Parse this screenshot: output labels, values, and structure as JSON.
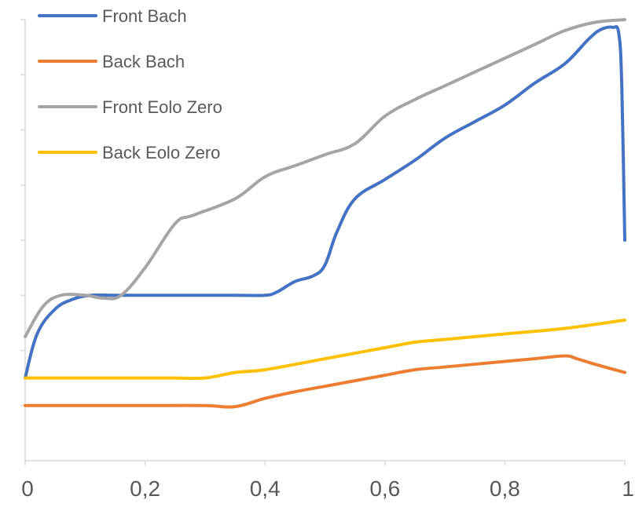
{
  "chart_data": {
    "type": "line",
    "title": "",
    "xlabel": "",
    "ylabel": "",
    "xlim": [
      0,
      1
    ],
    "ylim": [
      0,
      8
    ],
    "x_ticks": [
      {
        "value": 0,
        "label": "0"
      },
      {
        "value": 0.2,
        "label": "0,2"
      },
      {
        "value": 0.4,
        "label": "0,4"
      },
      {
        "value": 0.6,
        "label": "0,6"
      },
      {
        "value": 0.8,
        "label": "0,8"
      },
      {
        "value": 1,
        "label": "1"
      }
    ],
    "y_ticks": [
      1,
      2,
      3,
      4,
      5,
      6,
      7,
      8
    ],
    "y_tick_labels_shown": false,
    "grid": false,
    "legend_position": "top-left",
    "series": [
      {
        "name": "Front Bach",
        "color": "#4472C4",
        "points": [
          [
            0,
            1.5
          ],
          [
            0.02,
            2.3
          ],
          [
            0.05,
            2.75
          ],
          [
            0.08,
            2.93
          ],
          [
            0.11,
            3.0
          ],
          [
            0.15,
            3.0
          ],
          [
            0.2,
            3.0
          ],
          [
            0.3,
            3.0
          ],
          [
            0.35,
            3.0
          ],
          [
            0.4,
            3.0
          ],
          [
            0.42,
            3.06
          ],
          [
            0.45,
            3.25
          ],
          [
            0.48,
            3.35
          ],
          [
            0.5,
            3.55
          ],
          [
            0.52,
            4.15
          ],
          [
            0.55,
            4.75
          ],
          [
            0.6,
            5.1
          ],
          [
            0.65,
            5.45
          ],
          [
            0.7,
            5.85
          ],
          [
            0.75,
            6.15
          ],
          [
            0.8,
            6.45
          ],
          [
            0.85,
            6.85
          ],
          [
            0.9,
            7.2
          ],
          [
            0.94,
            7.65
          ],
          [
            0.96,
            7.82
          ],
          [
            0.98,
            7.86
          ],
          [
            0.99,
            7.75
          ],
          [
            0.995,
            6.8
          ],
          [
            1.0,
            4.0
          ]
        ]
      },
      {
        "name": "Back Bach",
        "color": "#ED7D31",
        "points": [
          [
            0,
            1.0
          ],
          [
            0.1,
            1.0
          ],
          [
            0.2,
            1.0
          ],
          [
            0.3,
            1.0
          ],
          [
            0.35,
            0.98
          ],
          [
            0.4,
            1.13
          ],
          [
            0.45,
            1.25
          ],
          [
            0.5,
            1.35
          ],
          [
            0.55,
            1.45
          ],
          [
            0.6,
            1.55
          ],
          [
            0.65,
            1.65
          ],
          [
            0.7,
            1.7
          ],
          [
            0.8,
            1.8
          ],
          [
            0.85,
            1.85
          ],
          [
            0.9,
            1.9
          ],
          [
            0.92,
            1.85
          ],
          [
            0.95,
            1.75
          ],
          [
            1.0,
            1.6
          ]
        ]
      },
      {
        "name": "Front Eolo Zero",
        "color": "#A5A5A5",
        "points": [
          [
            0,
            2.25
          ],
          [
            0.03,
            2.8
          ],
          [
            0.06,
            3.0
          ],
          [
            0.1,
            3.0
          ],
          [
            0.13,
            2.95
          ],
          [
            0.16,
            3.0
          ],
          [
            0.2,
            3.5
          ],
          [
            0.25,
            4.3
          ],
          [
            0.28,
            4.45
          ],
          [
            0.35,
            4.75
          ],
          [
            0.4,
            5.15
          ],
          [
            0.45,
            5.35
          ],
          [
            0.5,
            5.55
          ],
          [
            0.55,
            5.75
          ],
          [
            0.6,
            6.25
          ],
          [
            0.65,
            6.55
          ],
          [
            0.7,
            6.8
          ],
          [
            0.75,
            7.05
          ],
          [
            0.8,
            7.3
          ],
          [
            0.85,
            7.55
          ],
          [
            0.9,
            7.8
          ],
          [
            0.95,
            7.95
          ],
          [
            1.0,
            8.0
          ]
        ]
      },
      {
        "name": "Back Eolo Zero",
        "color": "#FFC000",
        "points": [
          [
            0,
            1.5
          ],
          [
            0.1,
            1.5
          ],
          [
            0.2,
            1.5
          ],
          [
            0.25,
            1.5
          ],
          [
            0.3,
            1.5
          ],
          [
            0.35,
            1.6
          ],
          [
            0.4,
            1.65
          ],
          [
            0.5,
            1.85
          ],
          [
            0.6,
            2.05
          ],
          [
            0.65,
            2.15
          ],
          [
            0.7,
            2.2
          ],
          [
            0.8,
            2.3
          ],
          [
            0.9,
            2.4
          ],
          [
            1.0,
            2.55
          ]
        ]
      }
    ]
  }
}
